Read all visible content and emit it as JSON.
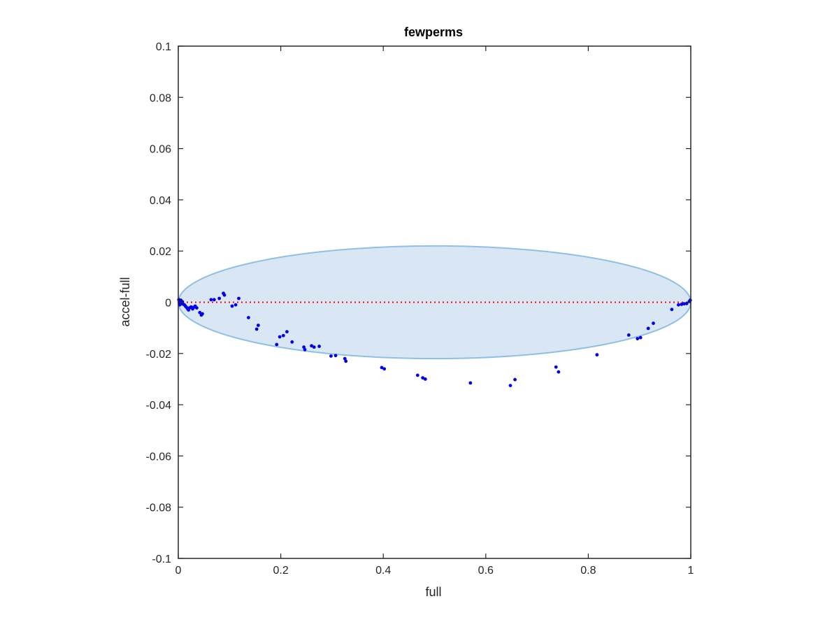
{
  "chart_data": {
    "type": "scatter",
    "title": "fewperms",
    "xlabel": "full",
    "ylabel": "accel-full",
    "xlim": [
      0,
      1
    ],
    "ylim": [
      -0.1,
      0.1
    ],
    "xticks": [
      0,
      0.2,
      0.4,
      0.6,
      0.8,
      1
    ],
    "xtick_labels": [
      "0",
      "0.2",
      "0.4",
      "0.6",
      "0.8",
      "1"
    ],
    "yticks": [
      0.1,
      0.08,
      0.06,
      0.04,
      0.02,
      0,
      -0.02,
      -0.04,
      -0.06,
      -0.08,
      -0.1
    ],
    "ytick_labels": [
      "0.1",
      "0.08",
      "0.06",
      "0.04",
      "0.02",
      "0",
      "-0.02",
      "-0.04",
      "-0.06",
      "-0.08",
      "-0.1"
    ],
    "grid": false,
    "reference_line": {
      "y": 0,
      "style": "dotted",
      "color": "#ff0000"
    },
    "ellipse": {
      "cx": 0.5,
      "cy": 0,
      "rx": 0.5,
      "ry": 0.022,
      "fill": "#d8e7f3",
      "stroke": "#8fc0e3"
    },
    "series": [
      {
        "color": "#0000ee",
        "points": [
          [
            0.001,
            0.001
          ],
          [
            0.002,
            0.0
          ],
          [
            0.003,
            -0.001
          ],
          [
            0.004,
            0.0
          ],
          [
            0.005,
            0.0008
          ],
          [
            0.006,
            -0.0005
          ],
          [
            0.008,
            0.0002
          ],
          [
            0.01,
            -0.0008
          ],
          [
            0.012,
            -0.001
          ],
          [
            0.014,
            -0.0015
          ],
          [
            0.016,
            -0.002
          ],
          [
            0.018,
            -0.0025
          ],
          [
            0.02,
            -0.003
          ],
          [
            0.022,
            -0.0022
          ],
          [
            0.025,
            -0.0018
          ],
          [
            0.028,
            -0.0026
          ],
          [
            0.03,
            -0.002
          ],
          [
            0.033,
            -0.0015
          ],
          [
            0.036,
            -0.0022
          ],
          [
            0.042,
            -0.004
          ],
          [
            0.045,
            -0.005
          ],
          [
            0.047,
            -0.0045
          ],
          [
            0.064,
            0.001
          ],
          [
            0.07,
            0.001
          ],
          [
            0.08,
            0.0015
          ],
          [
            0.088,
            0.0035
          ],
          [
            0.09,
            0.0028
          ],
          [
            0.105,
            -0.0015
          ],
          [
            0.112,
            -0.001
          ],
          [
            0.118,
            0.0015
          ],
          [
            0.137,
            -0.006
          ],
          [
            0.153,
            -0.0105
          ],
          [
            0.156,
            -0.009
          ],
          [
            0.192,
            -0.0165
          ],
          [
            0.198,
            -0.0135
          ],
          [
            0.205,
            -0.013
          ],
          [
            0.212,
            -0.0115
          ],
          [
            0.222,
            -0.0155
          ],
          [
            0.245,
            -0.0175
          ],
          [
            0.247,
            -0.0185
          ],
          [
            0.26,
            -0.017
          ],
          [
            0.265,
            -0.0175
          ],
          [
            0.275,
            -0.0172
          ],
          [
            0.298,
            -0.021
          ],
          [
            0.307,
            -0.0208
          ],
          [
            0.325,
            -0.022
          ],
          [
            0.327,
            -0.023
          ],
          [
            0.397,
            -0.0255
          ],
          [
            0.402,
            -0.026
          ],
          [
            0.467,
            -0.0285
          ],
          [
            0.477,
            -0.0295
          ],
          [
            0.482,
            -0.03
          ],
          [
            0.57,
            -0.0315
          ],
          [
            0.648,
            -0.0325
          ],
          [
            0.657,
            -0.0302
          ],
          [
            0.737,
            -0.0253
          ],
          [
            0.742,
            -0.0272
          ],
          [
            0.817,
            -0.0205
          ],
          [
            0.879,
            -0.0128
          ],
          [
            0.896,
            -0.0142
          ],
          [
            0.902,
            -0.0138
          ],
          [
            0.917,
            -0.0102
          ],
          [
            0.927,
            -0.0082
          ],
          [
            0.963,
            -0.0028
          ],
          [
            0.976,
            -0.001
          ],
          [
            0.982,
            -0.0008
          ],
          [
            0.987,
            -0.0006
          ],
          [
            0.992,
            -0.0005
          ],
          [
            0.997,
            0.0003
          ],
          [
            0.999,
            0.0008
          ]
        ]
      }
    ]
  }
}
